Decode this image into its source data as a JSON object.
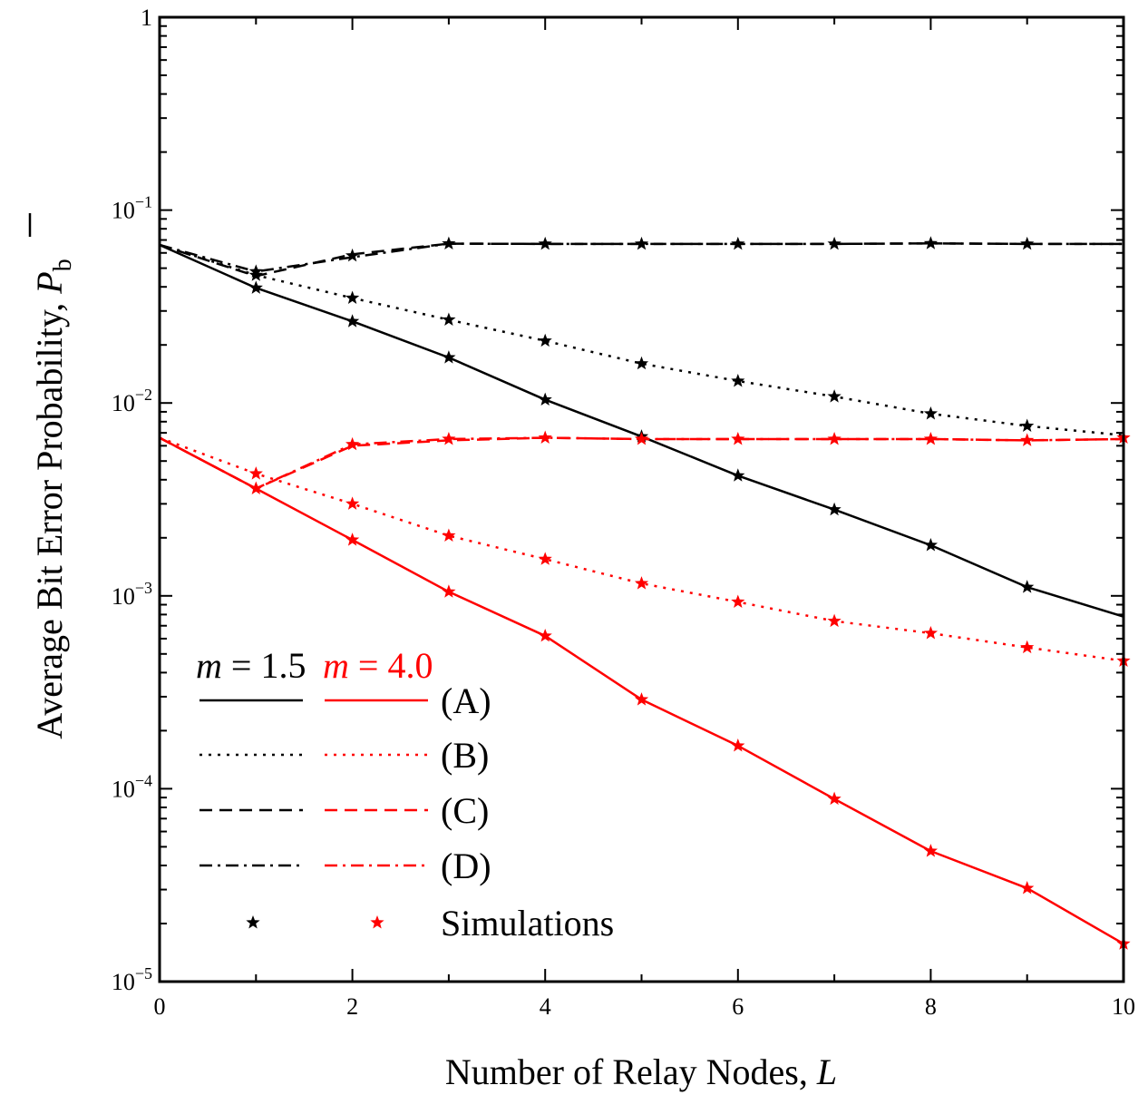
{
  "chart_data": {
    "type": "line",
    "xlabel": "Number of Relay Nodes, ",
    "xlabel_var": "L",
    "ylabel": "Average Bit Error Probability, ",
    "ylabel_var": "P",
    "ylabel_sub": "b",
    "xlim": [
      0,
      10
    ],
    "ylim": [
      1e-05,
      1
    ],
    "yscale": "log",
    "xticks": [
      0,
      2,
      4,
      6,
      8,
      10
    ],
    "yticks": [
      {
        "value": 1,
        "base": "1",
        "exp": ""
      },
      {
        "value": 0.1,
        "base": "10",
        "exp": "−1"
      },
      {
        "value": 0.01,
        "base": "10",
        "exp": "−2"
      },
      {
        "value": 0.001,
        "base": "10",
        "exp": "−3"
      },
      {
        "value": 0.0001,
        "base": "10",
        "exp": "−4"
      },
      {
        "value": 1e-05,
        "base": "10",
        "exp": "−5"
      }
    ],
    "grid": false,
    "colors": {
      "m15": "#000000",
      "m40": "#ff0000"
    },
    "x": [
      0,
      1,
      2,
      3,
      4,
      5,
      6,
      7,
      8,
      9,
      10
    ],
    "series": [
      {
        "group": "m=1.5",
        "curve": "A",
        "style": "solid",
        "color": "#000000",
        "values": [
          0.066,
          0.0395,
          0.0265,
          0.0172,
          0.0104,
          0.0067,
          0.0042,
          0.0028,
          0.00183,
          0.00111,
          0.00078
        ]
      },
      {
        "group": "m=1.5",
        "curve": "B",
        "style": "dotted",
        "color": "#000000",
        "values": [
          0.066,
          0.046,
          0.035,
          0.027,
          0.021,
          0.016,
          0.013,
          0.0108,
          0.0088,
          0.0076,
          0.0068
        ]
      },
      {
        "group": "m=1.5",
        "curve": "C",
        "style": "dashed",
        "color": "#000000",
        "values": [
          0.066,
          0.0455,
          0.059,
          0.067,
          0.0668,
          0.0668,
          0.0668,
          0.0668,
          0.0672,
          0.0668,
          0.0668
        ]
      },
      {
        "group": "m=1.5",
        "curve": "D",
        "style": "dashdot",
        "color": "#000000",
        "values": [
          0.066,
          0.048,
          0.057,
          0.067,
          0.0668,
          0.0668,
          0.0668,
          0.0668,
          0.0672,
          0.0668,
          0.0668
        ]
      },
      {
        "group": "m=4.0",
        "curve": "A",
        "style": "solid",
        "color": "#ff0000",
        "values": [
          0.0066,
          0.0036,
          0.00195,
          0.00105,
          0.00062,
          0.00029,
          0.000167,
          8.85e-05,
          4.75e-05,
          3.05e-05,
          1.57e-05
        ]
      },
      {
        "group": "m=4.0",
        "curve": "B",
        "style": "dotted",
        "color": "#ff0000",
        "values": [
          0.0066,
          0.0043,
          0.003,
          0.00205,
          0.00155,
          0.00116,
          0.00093,
          0.00074,
          0.00064,
          0.00054,
          0.00046
        ]
      },
      {
        "group": "m=4.0",
        "curve": "C",
        "style": "dashed",
        "color": "#ff0000",
        "values": [
          0.0066,
          0.0036,
          0.006,
          0.0064,
          0.0066,
          0.0065,
          0.0065,
          0.0065,
          0.0065,
          0.0064,
          0.0065
        ]
      },
      {
        "group": "m=4.0",
        "curve": "D",
        "style": "dashdot",
        "color": "#ff0000",
        "values": [
          0.0066,
          0.0036,
          0.0061,
          0.0065,
          0.0066,
          0.0065,
          0.0065,
          0.0065,
          0.0065,
          0.0064,
          0.0065
        ]
      }
    ],
    "simulations": [
      {
        "color": "#000000",
        "x": [
          1,
          2,
          3,
          4,
          5,
          6,
          7,
          8,
          9
        ],
        "values": [
          0.0395,
          0.0265,
          0.0172,
          0.0104,
          0.0067,
          0.0042,
          0.0028,
          0.00183,
          0.00111
        ]
      },
      {
        "color": "#000000",
        "x": [
          1,
          2,
          3,
          4,
          5,
          6,
          7,
          8,
          9
        ],
        "values": [
          0.046,
          0.035,
          0.027,
          0.021,
          0.016,
          0.013,
          0.0108,
          0.0088,
          0.0076
        ]
      },
      {
        "color": "#000000",
        "x": [
          1,
          2,
          3,
          4,
          5,
          6,
          7,
          8,
          9
        ],
        "values": [
          0.048,
          0.058,
          0.067,
          0.0668,
          0.0668,
          0.0668,
          0.0668,
          0.0672,
          0.0668
        ]
      },
      {
        "color": "#ff0000",
        "x": [
          1,
          2,
          3,
          4,
          5,
          6,
          7,
          8,
          9,
          10
        ],
        "values": [
          0.0036,
          0.00195,
          0.00105,
          0.00062,
          0.00029,
          0.000167,
          8.85e-05,
          4.75e-05,
          3.05e-05,
          1.57e-05
        ]
      },
      {
        "color": "#ff0000",
        "x": [
          1,
          2,
          3,
          4,
          5,
          6,
          7,
          8,
          9,
          10
        ],
        "values": [
          0.0043,
          0.003,
          0.00205,
          0.00155,
          0.00116,
          0.00093,
          0.00074,
          0.00064,
          0.00054,
          0.00046
        ]
      },
      {
        "color": "#ff0000",
        "x": [
          2,
          3,
          4,
          5,
          6,
          7,
          8,
          9,
          10
        ],
        "values": [
          0.0061,
          0.0065,
          0.0066,
          0.0065,
          0.0065,
          0.0065,
          0.0065,
          0.0064,
          0.0066
        ]
      }
    ],
    "legend": {
      "placement": "bottom-left",
      "header_m15_var": "m",
      "header_m15_val": " = 1.5",
      "header_m40_var": "m",
      "header_m40_val": " = 4.0",
      "entries": [
        {
          "label": "(A)",
          "style": "solid"
        },
        {
          "label": "(B)",
          "style": "dotted"
        },
        {
          "label": "(C)",
          "style": "dashed"
        },
        {
          "label": "(D)",
          "style": "dashdot"
        }
      ],
      "sim_label": "Simulations"
    }
  }
}
